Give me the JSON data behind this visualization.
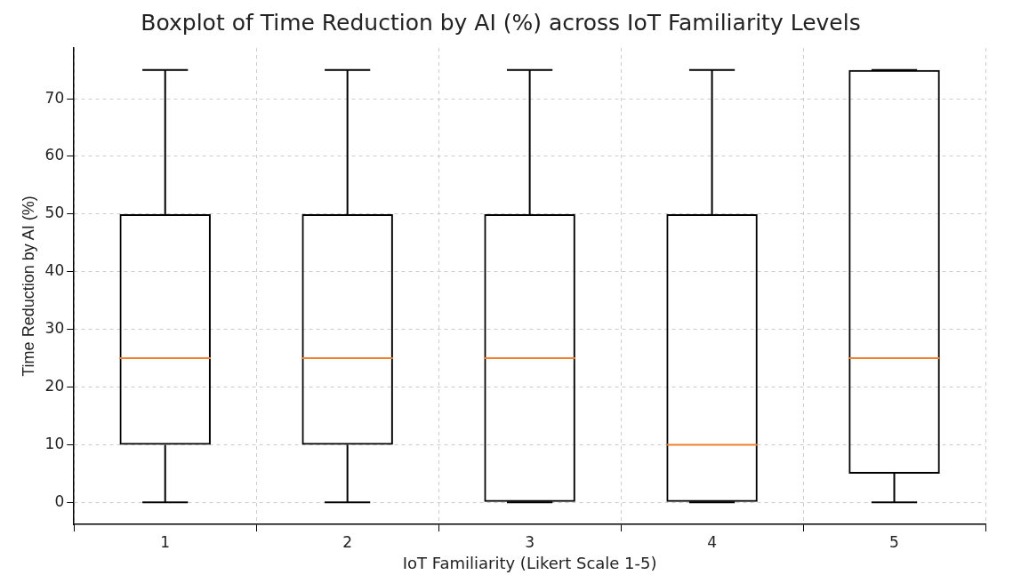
{
  "chart_data": {
    "type": "box",
    "title": "Boxplot of Time Reduction by AI (%) across IoT Familiarity Levels",
    "xlabel": "IoT Familiarity (Likert Scale 1-5)",
    "ylabel": "Time Reduction by AI (%)",
    "categories": [
      "1",
      "2",
      "3",
      "4",
      "5"
    ],
    "boxes": [
      {
        "low": 0,
        "q1": 10,
        "median": 25,
        "q3": 50,
        "high": 75
      },
      {
        "low": 0,
        "q1": 10,
        "median": 25,
        "q3": 50,
        "high": 75
      },
      {
        "low": 0,
        "q1": 0,
        "median": 25,
        "q3": 50,
        "high": 75
      },
      {
        "low": 0,
        "q1": 0,
        "median": 10,
        "q3": 50,
        "high": 75
      },
      {
        "low": 0,
        "q1": 5,
        "median": 25,
        "q3": 75,
        "high": 75
      }
    ],
    "ylim": [
      -3.8,
      78.8
    ],
    "yticks": [
      0,
      10,
      20,
      30,
      40,
      50,
      60,
      70
    ],
    "grid": true
  }
}
